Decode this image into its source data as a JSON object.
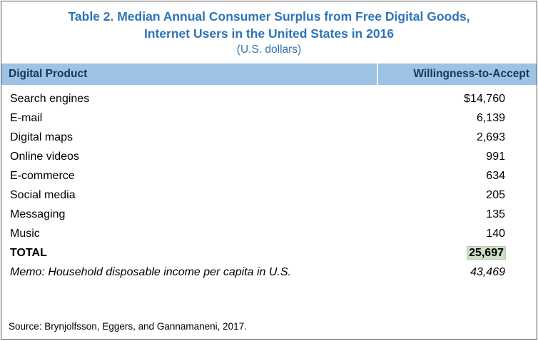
{
  "title": {
    "line1": "Table 2. Median Annual Consumer Surplus from Free Digital Goods,",
    "line2": "Internet Users in the United States in 2016",
    "subtitle": "(U.S. dollars)"
  },
  "table": {
    "headers": {
      "product": "Digital Product",
      "value": "Willingness-to-Accept"
    },
    "rows": [
      {
        "product": "Search engines",
        "value": "$14,760"
      },
      {
        "product": "E-mail",
        "value": "6,139"
      },
      {
        "product": "Digital maps",
        "value": "2,693"
      },
      {
        "product": "Online videos",
        "value": "991"
      },
      {
        "product": "E-commerce",
        "value": "634"
      },
      {
        "product": "Social media",
        "value": "205"
      },
      {
        "product": "Messaging",
        "value": "135"
      },
      {
        "product": "Music",
        "value": "140"
      }
    ],
    "total": {
      "label": "TOTAL",
      "value": "25,697"
    },
    "memo": {
      "label": "Memo: Household disposable income per capita in U.S.",
      "value": "43,469"
    }
  },
  "source": "Source: Brynjolfsson, Eggers, and Gannamaneni, 2017.",
  "colors": {
    "title_text": "#2E75B6",
    "header_bg": "#9CC3E5",
    "header_text": "#17375E",
    "total_highlight": "#cdddc8"
  },
  "chart_data": {
    "type": "table",
    "title": "Table 2. Median Annual Consumer Surplus from Free Digital Goods, Internet Users in the United States in 2016 (U.S. dollars)",
    "columns": [
      "Digital Product",
      "Willingness-to-Accept"
    ],
    "categories": [
      "Search engines",
      "E-mail",
      "Digital maps",
      "Online videos",
      "E-commerce",
      "Social media",
      "Messaging",
      "Music",
      "TOTAL",
      "Memo: Household disposable income per capita in U.S."
    ],
    "values": [
      14760,
      6139,
      2693,
      991,
      634,
      205,
      135,
      140,
      25697,
      43469
    ]
  }
}
